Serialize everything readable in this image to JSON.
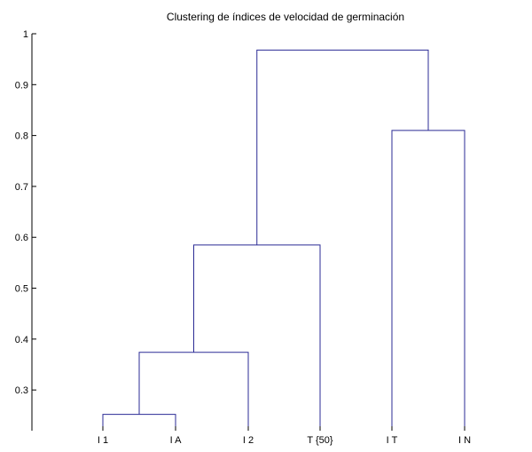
{
  "chart_data": {
    "type": "dendrogram",
    "title": "Clustering de índices de velocidad de germinación",
    "xlabel": "",
    "ylabel": "",
    "ylim": [
      0.22,
      1.0
    ],
    "yticks": [
      0.3,
      0.4,
      0.5,
      0.6,
      0.7,
      0.8,
      0.9,
      1
    ],
    "ytick_labels": [
      "0.3",
      "0.4",
      "0.5",
      "0.6",
      "0.7",
      "0.8",
      "0.9",
      "1"
    ],
    "leaves": [
      "I 1",
      "I A",
      "I 2",
      "T {50}",
      "I T",
      "I N"
    ],
    "merges": [
      {
        "left": "leaf:0",
        "right": "leaf:1",
        "height": 0.252
      },
      {
        "left": "node:0",
        "right": "leaf:2",
        "height": 0.374
      },
      {
        "left": "node:1",
        "right": "leaf:3",
        "height": 0.585
      },
      {
        "left": "leaf:4",
        "right": "leaf:5",
        "height": 0.81
      },
      {
        "left": "node:2",
        "right": "node:3",
        "height": 0.968
      }
    ],
    "grid": false,
    "legend": "none",
    "colors": {
      "link": "#2b2b95",
      "axis": "#000000",
      "background": "#ffffff"
    }
  }
}
